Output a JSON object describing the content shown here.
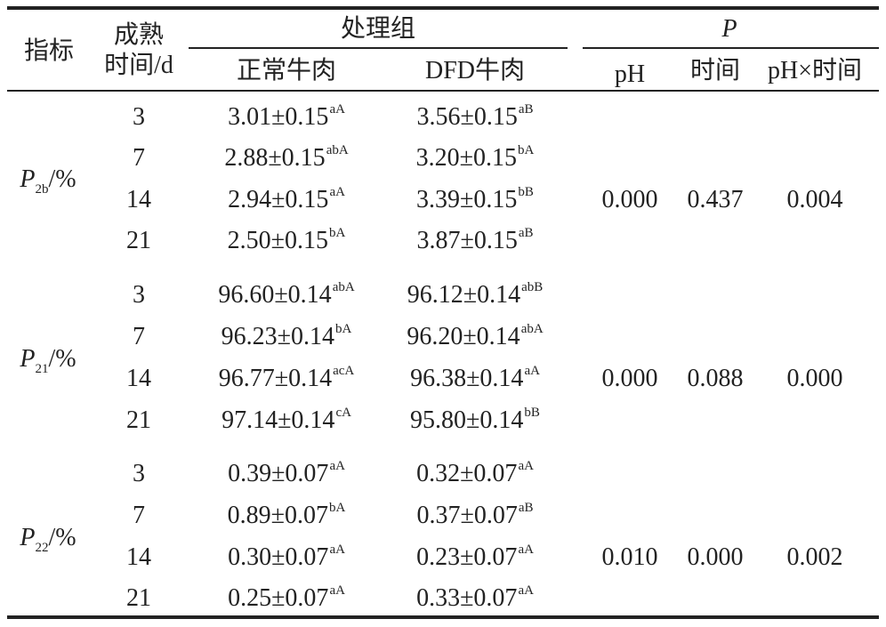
{
  "header": {
    "indicator": "指标",
    "ripening_line1": "成熟",
    "ripening_line2": "时间/d",
    "treatment_group": "处理组",
    "normal_beef": "正常牛肉",
    "dfd_beef": "DFD牛肉",
    "p_label": "P",
    "p_ph": "pH",
    "p_time": "时间",
    "p_interaction": "pH×时间"
  },
  "groups": [
    {
      "indicator_base": "P",
      "indicator_sub": "2b",
      "indicator_suffix": "/%",
      "rows": [
        {
          "time": "3",
          "normal_val": "3.01±0.15",
          "normal_sup": "aA",
          "dfd_val": "3.56±0.15",
          "dfd_sup": "aB"
        },
        {
          "time": "7",
          "normal_val": "2.88±0.15",
          "normal_sup": "abA",
          "dfd_val": "3.20±0.15",
          "dfd_sup": "bA"
        },
        {
          "time": "14",
          "normal_val": "2.94±0.15",
          "normal_sup": "aA",
          "dfd_val": "3.39±0.15",
          "dfd_sup": "bB"
        },
        {
          "time": "21",
          "normal_val": "2.50±0.15",
          "normal_sup": "bA",
          "dfd_val": "3.87±0.15",
          "dfd_sup": "aB"
        }
      ],
      "p_ph": "0.000",
      "p_time": "0.437",
      "p_interaction": "0.004"
    },
    {
      "indicator_base": "P",
      "indicator_sub": "21",
      "indicator_suffix": "/%",
      "rows": [
        {
          "time": "3",
          "normal_val": "96.60±0.14",
          "normal_sup": "abA",
          "dfd_val": "96.12±0.14",
          "dfd_sup": "abB"
        },
        {
          "time": "7",
          "normal_val": "96.23±0.14",
          "normal_sup": "bA",
          "dfd_val": "96.20±0.14",
          "dfd_sup": "abA"
        },
        {
          "time": "14",
          "normal_val": "96.77±0.14",
          "normal_sup": "acA",
          "dfd_val": "96.38±0.14",
          "dfd_sup": "aA"
        },
        {
          "time": "21",
          "normal_val": "97.14±0.14",
          "normal_sup": "cA",
          "dfd_val": "95.80±0.14",
          "dfd_sup": "bB"
        }
      ],
      "p_ph": "0.000",
      "p_time": "0.088",
      "p_interaction": "0.000"
    },
    {
      "indicator_base": "P",
      "indicator_sub": "22",
      "indicator_suffix": "/%",
      "rows": [
        {
          "time": "3",
          "normal_val": "0.39±0.07",
          "normal_sup": "aA",
          "dfd_val": "0.32±0.07",
          "dfd_sup": "aA"
        },
        {
          "time": "7",
          "normal_val": "0.89±0.07",
          "normal_sup": "bA",
          "dfd_val": "0.37±0.07",
          "dfd_sup": "aB"
        },
        {
          "time": "14",
          "normal_val": "0.30±0.07",
          "normal_sup": "aA",
          "dfd_val": "0.23±0.07",
          "dfd_sup": "aA"
        },
        {
          "time": "21",
          "normal_val": "0.25±0.07",
          "normal_sup": "aA",
          "dfd_val": "0.33±0.07",
          "dfd_sup": "aA"
        }
      ],
      "p_ph": "0.010",
      "p_time": "0.000",
      "p_interaction": "0.002"
    }
  ]
}
